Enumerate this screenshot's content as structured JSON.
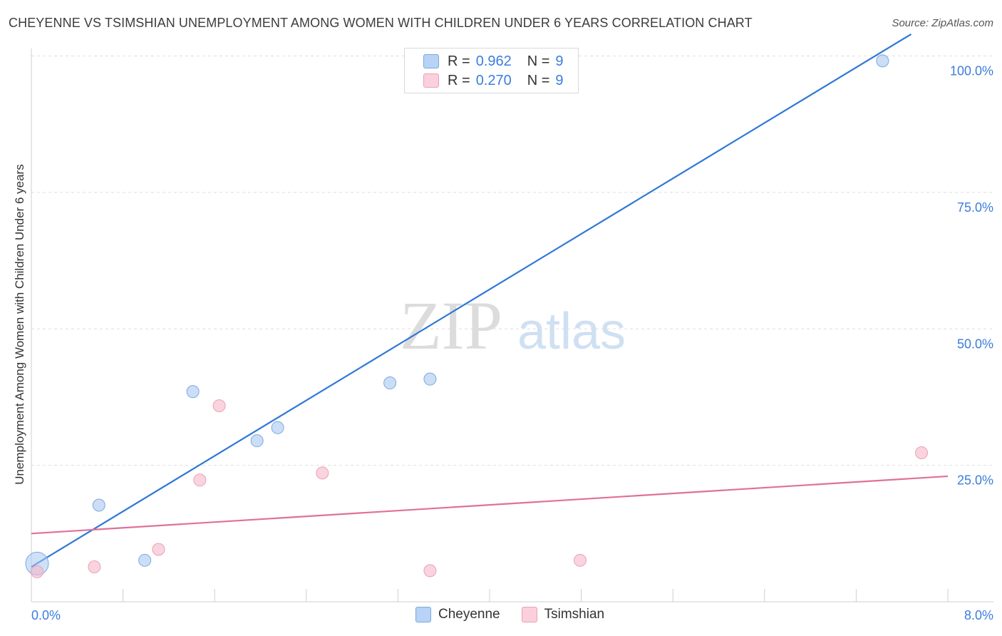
{
  "title": "CHEYENNE VS TSIMSHIAN UNEMPLOYMENT AMONG WOMEN WITH CHILDREN UNDER 6 YEARS CORRELATION CHART",
  "source": "Source: ZipAtlas.com",
  "watermark": {
    "zip": "ZIP",
    "atlas": "atlas"
  },
  "legend_top": [
    {
      "r_label": "R =",
      "r_value": "0.962",
      "n_label": "N =",
      "n_value": "9",
      "color": "#a8c8f0"
    },
    {
      "r_label": "R =",
      "r_value": "0.270",
      "n_label": "N =",
      "n_value": "9",
      "color": "#f5b8c8"
    }
  ],
  "legend_bottom": [
    {
      "name": "Cheyenne",
      "color": "#a8c8f0"
    },
    {
      "name": "Tsimshian",
      "color": "#f5b8c8"
    }
  ],
  "chart_data": {
    "type": "scatter",
    "title": "CHEYENNE VS TSIMSHIAN UNEMPLOYMENT AMONG WOMEN WITH CHILDREN UNDER 6 YEARS CORRELATION CHART",
    "xlabel": "",
    "ylabel": "Unemployment Among Women with Children Under 6 years",
    "xlim": [
      0,
      8
    ],
    "ylim": [
      0,
      102
    ],
    "x_tick_labels": [
      "0.0%",
      "8.0%"
    ],
    "y_ticks": [
      25,
      50,
      75,
      100
    ],
    "y_tick_labels": [
      "25.0%",
      "50.0%",
      "75.0%",
      "100.0%"
    ],
    "grid": true,
    "legend_position": "top-center",
    "series": [
      {
        "name": "Cheyenne",
        "color": "#a8c8f0",
        "line_color": "#2f78d6",
        "points": [
          {
            "x": 0.05,
            "y": 7.0,
            "big": true
          },
          {
            "x": 0.59,
            "y": 17.7
          },
          {
            "x": 0.99,
            "y": 7.6
          },
          {
            "x": 1.41,
            "y": 38.5
          },
          {
            "x": 1.97,
            "y": 29.5
          },
          {
            "x": 2.15,
            "y": 31.9
          },
          {
            "x": 3.13,
            "y": 40.1
          },
          {
            "x": 3.48,
            "y": 40.8
          },
          {
            "x": 7.43,
            "y": 99.1
          }
        ],
        "trend": {
          "x": [
            0.0,
            7.68
          ],
          "y": [
            6.4,
            104.0
          ]
        }
      },
      {
        "name": "Tsimshian",
        "color": "#f5b8c8",
        "line_color": "#e07099",
        "points": [
          {
            "x": 0.05,
            "y": 5.5
          },
          {
            "x": 0.55,
            "y": 6.4
          },
          {
            "x": 1.11,
            "y": 9.6
          },
          {
            "x": 1.47,
            "y": 22.3
          },
          {
            "x": 1.64,
            "y": 35.9
          },
          {
            "x": 2.54,
            "y": 23.6
          },
          {
            "x": 3.48,
            "y": 5.7
          },
          {
            "x": 4.79,
            "y": 7.6
          },
          {
            "x": 7.77,
            "y": 27.3
          }
        ],
        "trend": {
          "x": [
            0.0,
            8.0
          ],
          "y": [
            12.5,
            23.0
          ]
        }
      }
    ]
  }
}
